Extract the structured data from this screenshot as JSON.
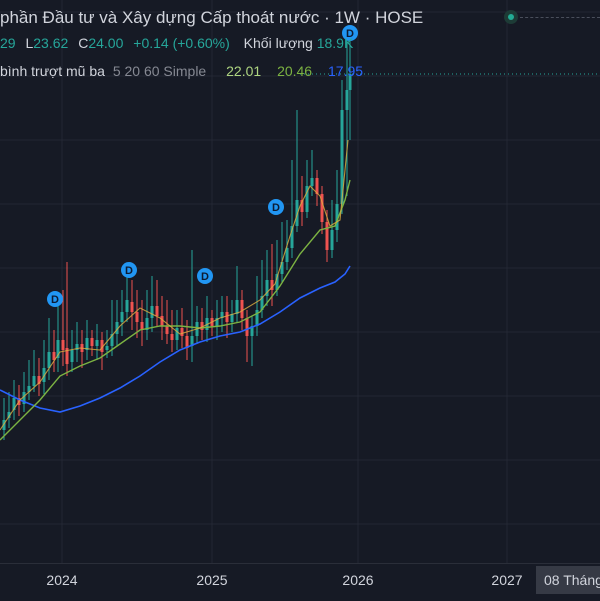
{
  "legend": {
    "title": "phần Đầu tư và Xây dựng Cấp thoát nước · 1W · HOSE",
    "open_partial": "29",
    "low_label": "L",
    "low_value": "23.62",
    "close_label": "C",
    "close_value": "24.00",
    "change": "+0.14 (+0.60%)",
    "volume_label": "Khối lượng",
    "volume_value": "18.9K"
  },
  "ma_legend": {
    "name": "bình trượt mũ ba",
    "params": "5 20 60 Simple",
    "v1": "22.01",
    "v2": "20.46",
    "v3": "17.95"
  },
  "time_axis": {
    "labels": [
      "2024",
      "2025",
      "2026",
      "2027"
    ],
    "crosshair": "08 Tháng"
  },
  "dividend_marker": "D",
  "colors": {
    "up": "#26a69a",
    "down": "#ef5350",
    "ma_fast": "#aed581",
    "ma_mid": "#7cb342",
    "ma_slow": "#2962ff",
    "marker": "#2196f3"
  }
}
